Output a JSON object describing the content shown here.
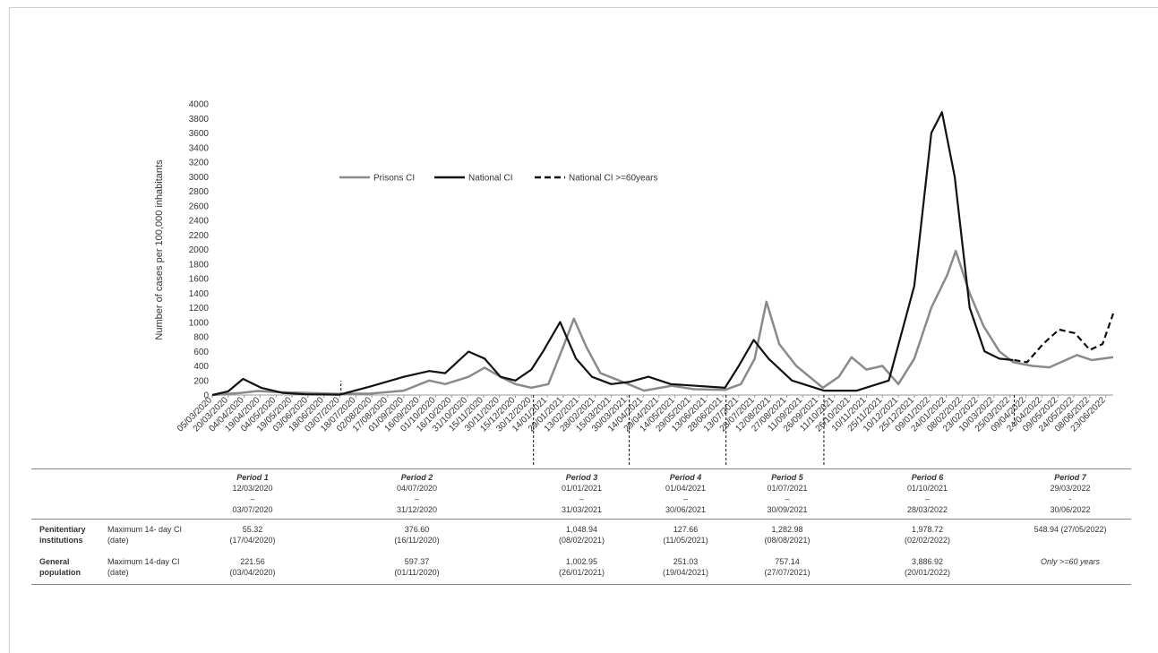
{
  "chart_data": {
    "type": "line",
    "ylabel": "Number of cases per 100,000 inhabitants",
    "ylim": [
      0,
      4000
    ],
    "yticks": [
      0,
      200,
      400,
      600,
      800,
      1000,
      1200,
      1400,
      1600,
      1800,
      2000,
      2200,
      2400,
      2600,
      2800,
      3000,
      3200,
      3400,
      3600,
      3800,
      4000
    ],
    "x_tick_labels": [
      "05/03/2020",
      "20/03/2020",
      "04/04/2020",
      "19/04/2020",
      "04/05/2020",
      "19/05/2020",
      "03/06/2020",
      "18/06/2020",
      "03/07/2020",
      "18/07/2020",
      "02/08/2020",
      "17/08/2020",
      "01/09/2020",
      "16/09/2020",
      "01/10/2020",
      "16/10/2020",
      "31/10/2020",
      "15/11/2020",
      "30/11/2020",
      "15/12/2020",
      "30/12/2020",
      "14/01/2021",
      "29/01/2021",
      "13/02/2021",
      "28/02/2021",
      "15/03/2021",
      "30/03/2021",
      "14/04/2021",
      "29/04/2021",
      "14/05/2021",
      "29/05/2021",
      "13/06/2021",
      "28/06/2021",
      "13/07/2021",
      "28/07/2021",
      "12/08/2021",
      "27/08/2021",
      "11/09/2021",
      "26/09/2021",
      "11/10/2021",
      "26/10/2021",
      "10/11/2021",
      "25/11/2021",
      "10/12/2021",
      "25/12/2021",
      "09/01/2022",
      "24/01/2022",
      "08/02/2022",
      "23/02/2022",
      "10/03/2022",
      "25/03/2022",
      "09/04/2022",
      "24/04/2022",
      "09/05/2022",
      "24/05/2022",
      "08/06/2022",
      "23/06/2022"
    ],
    "x_range": [
      "05/03/2020",
      "30/06/2022"
    ],
    "period_boundaries": [
      "04/07/2020",
      "01/01/2021",
      "01/04/2021",
      "01/07/2021",
      "01/10/2021",
      "29/03/2022"
    ],
    "legend_position": "top-center",
    "series": [
      {
        "name": "Prisons CI",
        "color": "#8a8a8a",
        "style": "solid",
        "x": [
          "05/03/2020",
          "01/04/2020",
          "17/04/2020",
          "05/05/2020",
          "01/06/2020",
          "03/07/2020",
          "01/08/2020",
          "01/09/2020",
          "25/09/2020",
          "10/10/2020",
          "01/11/2020",
          "16/11/2020",
          "01/12/2020",
          "15/12/2020",
          "30/12/2020",
          "15/01/2021",
          "30/01/2021",
          "08/02/2021",
          "20/02/2021",
          "05/03/2021",
          "31/03/2021",
          "15/04/2021",
          "11/05/2021",
          "01/06/2021",
          "30/06/2021",
          "15/07/2021",
          "28/07/2021",
          "08/08/2021",
          "20/08/2021",
          "05/09/2021",
          "30/09/2021",
          "15/10/2021",
          "27/10/2021",
          "10/11/2021",
          "25/11/2021",
          "10/12/2021",
          "25/12/2021",
          "10/01/2022",
          "25/01/2022",
          "02/02/2022",
          "15/02/2022",
          "28/02/2022",
          "15/03/2022",
          "28/03/2022",
          "15/04/2022",
          "01/05/2022",
          "27/05/2022",
          "10/06/2022",
          "30/06/2022"
        ],
        "y": [
          0,
          30,
          55,
          40,
          30,
          15,
          20,
          60,
          200,
          150,
          250,
          377,
          250,
          150,
          100,
          150,
          700,
          1049,
          650,
          300,
          150,
          60,
          128,
          80,
          70,
          150,
          500,
          1283,
          700,
          400,
          100,
          250,
          520,
          350,
          400,
          150,
          500,
          1200,
          1650,
          1979,
          1400,
          950,
          600,
          450,
          400,
          380,
          549,
          480,
          520
        ]
      },
      {
        "name": "National CI",
        "color": "#111111",
        "style": "solid",
        "x": [
          "05/03/2020",
          "20/03/2020",
          "03/04/2020",
          "20/04/2020",
          "10/05/2020",
          "01/06/2020",
          "03/07/2020",
          "01/08/2020",
          "01/09/2020",
          "25/09/2020",
          "10/10/2020",
          "01/11/2020",
          "16/11/2020",
          "01/12/2020",
          "15/12/2020",
          "30/12/2020",
          "10/01/2021",
          "26/01/2021",
          "10/02/2021",
          "25/02/2021",
          "15/03/2021",
          "01/04/2021",
          "19/04/2021",
          "10/05/2021",
          "30/06/2021",
          "13/07/2021",
          "27/07/2021",
          "10/08/2021",
          "01/09/2021",
          "01/10/2021",
          "01/11/2021",
          "01/12/2021",
          "25/12/2021",
          "10/01/2022",
          "20/01/2022",
          "01/02/2022",
          "15/02/2022",
          "01/03/2022",
          "15/03/2022",
          "28/03/2022"
        ],
        "y": [
          0,
          50,
          222,
          100,
          30,
          10,
          5,
          120,
          250,
          330,
          300,
          597,
          500,
          250,
          200,
          350,
          600,
          1003,
          500,
          250,
          150,
          180,
          251,
          150,
          100,
          400,
          757,
          500,
          200,
          60,
          60,
          200,
          1500,
          3600,
          3887,
          3000,
          1200,
          600,
          500,
          480
        ]
      },
      {
        "name": "National CI >=60years",
        "color": "#111111",
        "style": "dashed",
        "x": [
          "29/03/2022",
          "10/04/2022",
          "25/04/2022",
          "10/05/2022",
          "25/05/2022",
          "08/06/2022",
          "20/06/2022",
          "30/06/2022"
        ],
        "y": [
          480,
          450,
          700,
          900,
          850,
          620,
          700,
          1120
        ]
      }
    ]
  },
  "table": {
    "periods": [
      {
        "name": "Period 1",
        "start": "12/03/2020",
        "sep": "–",
        "end": "03/07/2020"
      },
      {
        "name": "Period 2",
        "start": "04/07/2020",
        "sep": "–",
        "end": "31/12/2020"
      },
      {
        "name": "Period 3",
        "start": "01/01/2021",
        "sep": "–",
        "end": "31/03/2021"
      },
      {
        "name": "Period 4",
        "start": "01/04/2021",
        "sep": "–",
        "end": "30/06/2021"
      },
      {
        "name": "Period 5",
        "start": "01/07/2021",
        "sep": "–",
        "end": "30/09/2021"
      },
      {
        "name": "Period 6",
        "start": "01/10/2021",
        "sep": "–",
        "end": "28/03/2022"
      },
      {
        "name": "Period 7",
        "start": "29/03/2022",
        "sep": "-",
        "end": "30/06/2022"
      }
    ],
    "rows": [
      {
        "group_line1": "Penitentiary",
        "group_line2": "institutions",
        "metric_line1": "Maximum 14- day CI",
        "metric_line2": "(date)",
        "cells": [
          {
            "v": "55.32",
            "d": "(17/04/2020)"
          },
          {
            "v": "376.60",
            "d": "(16/11/2020)"
          },
          {
            "v": "1,048.94",
            "d": "(08/02/2021)"
          },
          {
            "v": "127.66",
            "d": "(11/05/2021)"
          },
          {
            "v": "1,282.98",
            "d": "(08/08/2021)"
          },
          {
            "v": "1,978.72",
            "d": "(02/02/2022)"
          },
          {
            "v": "548.94 (27/05/2022)",
            "d": ""
          }
        ]
      },
      {
        "group_line1": "General",
        "group_line2": "population",
        "metric_line1": "Maximum 14-day CI",
        "metric_line2": "(date)",
        "cells": [
          {
            "v": "221.56",
            "d": "(03/04/2020)"
          },
          {
            "v": "597.37",
            "d": "(01/11/2020)"
          },
          {
            "v": "1,002.95",
            "d": "(26/01/2021)"
          },
          {
            "v": "251.03",
            "d": "(19/04/2021)"
          },
          {
            "v": "757.14",
            "d": "(27/07/2021)"
          },
          {
            "v": "3,886.92",
            "d": "(20/01/2022)"
          },
          {
            "v": "Only >=60 years",
            "d": ""
          }
        ]
      }
    ]
  }
}
